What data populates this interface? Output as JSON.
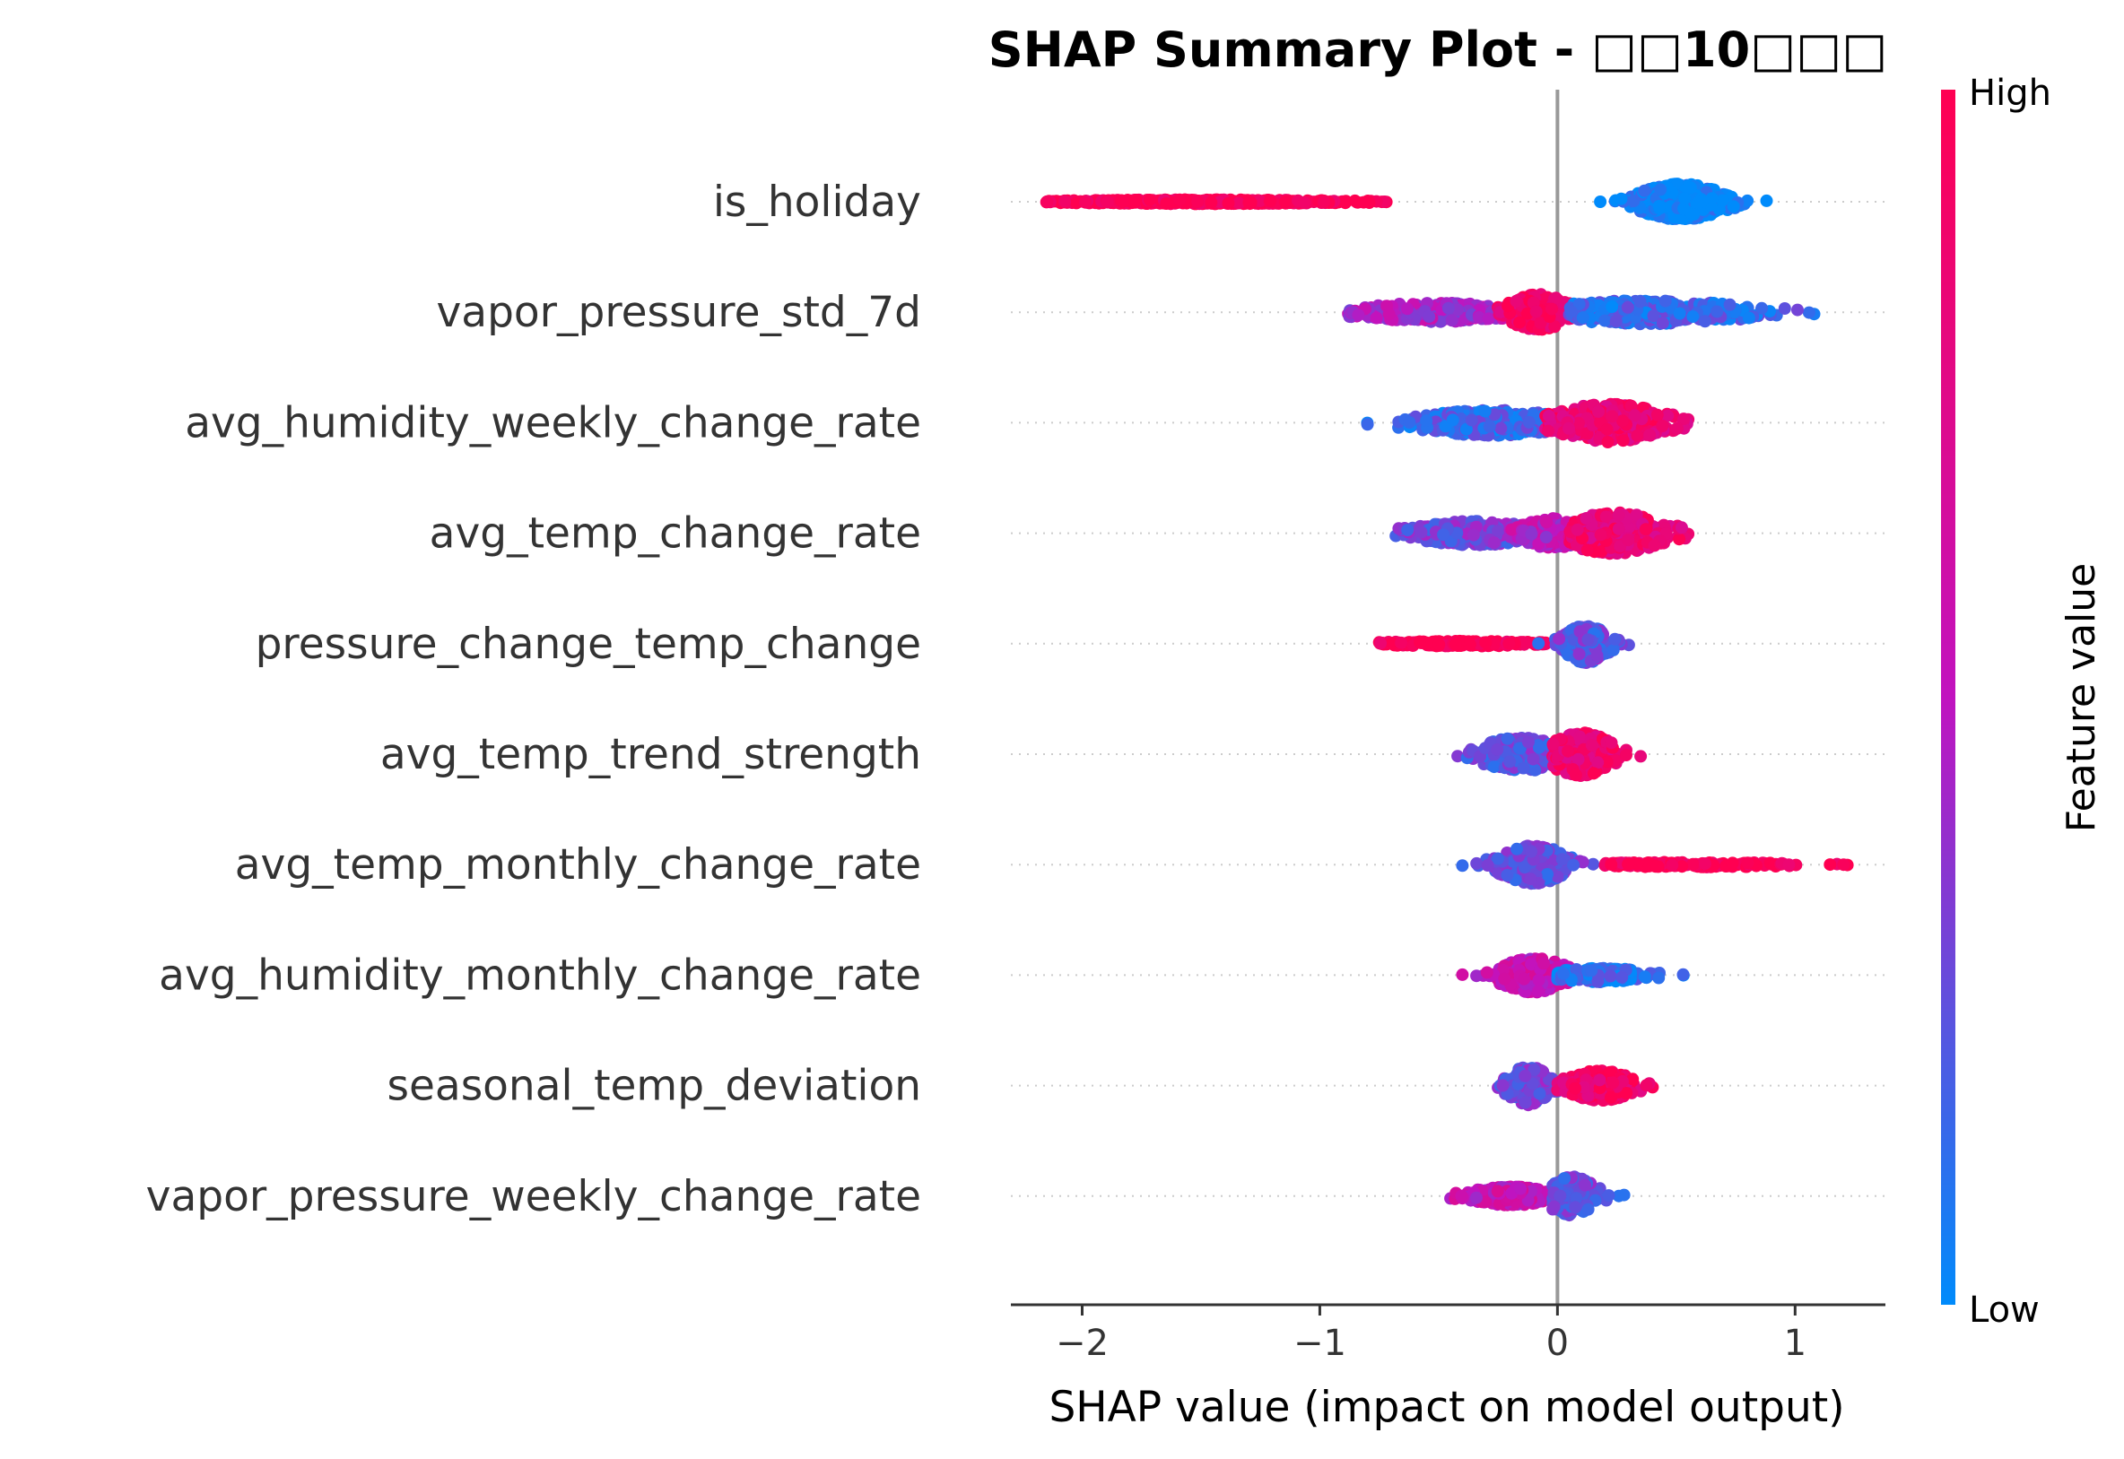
{
  "chart_data": {
    "type": "scatter",
    "subtype": "shap-beeswarm",
    "title": "SHAP Summary Plot - □□10□□□",
    "xlabel": "SHAP value (impact on model output)",
    "ylabel": "",
    "xlim": [
      -2.3,
      1.38
    ],
    "xticks": [
      -2,
      -1,
      0,
      1
    ],
    "xtick_labels": [
      "−2",
      "−1",
      "0",
      "1"
    ],
    "zero_line": 0,
    "colorbar": {
      "label": "Feature value",
      "high_label": "High",
      "low_label": "Low",
      "high_color": "#ff0051",
      "mid_color": "#c113bf",
      "low_color": "#008bfb"
    },
    "colors": {
      "axis": "#333333",
      "zero_line": "#999999",
      "row_guide": "#cccccc"
    },
    "features": [
      {
        "name": "is_holiday",
        "clusters": [
          {
            "min": -2.15,
            "max": -0.72,
            "center": -1.5,
            "spread": 0.35,
            "width": 0.05,
            "fvalue": 1.0,
            "n": 430
          },
          {
            "min": 0.18,
            "max": 0.88,
            "center": 0.52,
            "spread": 0.1,
            "width": 0.42,
            "fvalue": 0.0,
            "n": 520
          }
        ]
      },
      {
        "name": "vapor_pressure_std_7d",
        "clusters": [
          {
            "min": -0.88,
            "max": -0.05,
            "center": -0.5,
            "spread": 0.2,
            "width": 0.22,
            "fvalue": 0.45,
            "n": 260
          },
          {
            "min": -0.25,
            "max": 0.08,
            "center": -0.08,
            "spread": 0.07,
            "width": 0.42,
            "fvalue": 0.9,
            "n": 240
          },
          {
            "min": 0.05,
            "max": 1.08,
            "center": 0.38,
            "spread": 0.25,
            "width": 0.28,
            "fvalue": 0.15,
            "n": 300
          }
        ]
      },
      {
        "name": "avg_humidity_weekly_change_rate",
        "clusters": [
          {
            "min": -0.8,
            "max": -0.05,
            "center": -0.28,
            "spread": 0.18,
            "width": 0.3,
            "fvalue": 0.15,
            "n": 300
          },
          {
            "min": -0.05,
            "max": 0.55,
            "center": 0.22,
            "spread": 0.13,
            "width": 0.45,
            "fvalue": 0.85,
            "n": 320
          }
        ]
      },
      {
        "name": "avg_temp_change_rate",
        "clusters": [
          {
            "min": -0.68,
            "max": -0.1,
            "center": -0.35,
            "spread": 0.15,
            "width": 0.28,
            "fvalue": 0.3,
            "n": 240
          },
          {
            "min": -0.2,
            "max": 0.1,
            "center": -0.02,
            "spread": 0.08,
            "width": 0.35,
            "fvalue": 0.5,
            "n": 160
          },
          {
            "min": 0.05,
            "max": 0.55,
            "center": 0.24,
            "spread": 0.12,
            "width": 0.48,
            "fvalue": 0.85,
            "n": 300
          }
        ]
      },
      {
        "name": "pressure_change_temp_change",
        "clusters": [
          {
            "min": -0.75,
            "max": -0.05,
            "center": -0.42,
            "spread": 0.2,
            "width": 0.06,
            "fvalue": 1.0,
            "n": 170
          },
          {
            "min": -0.08,
            "max": 0.3,
            "center": 0.12,
            "spread": 0.05,
            "width": 0.45,
            "fvalue": 0.25,
            "n": 240
          }
        ]
      },
      {
        "name": "avg_temp_trend_strength",
        "clusters": [
          {
            "min": -0.42,
            "max": 0.0,
            "center": -0.15,
            "spread": 0.1,
            "width": 0.4,
            "fvalue": 0.25,
            "n": 220
          },
          {
            "min": -0.02,
            "max": 0.35,
            "center": 0.1,
            "spread": 0.08,
            "width": 0.5,
            "fvalue": 0.85,
            "n": 240
          }
        ]
      },
      {
        "name": "avg_temp_monthly_change_rate",
        "clusters": [
          {
            "min": -0.4,
            "max": 0.15,
            "center": -0.1,
            "spread": 0.08,
            "width": 0.45,
            "fvalue": 0.25,
            "n": 260
          },
          {
            "min": 0.2,
            "max": 1.22,
            "center": 0.55,
            "spread": 0.25,
            "width": 0.06,
            "fvalue": 1.0,
            "n": 190
          }
        ]
      },
      {
        "name": "avg_humidity_monthly_change_rate",
        "clusters": [
          {
            "min": -0.4,
            "max": 0.05,
            "center": -0.1,
            "spread": 0.08,
            "width": 0.4,
            "fvalue": 0.55,
            "n": 240
          },
          {
            "min": 0.0,
            "max": 0.53,
            "center": 0.18,
            "spread": 0.12,
            "width": 0.16,
            "fvalue": 0.1,
            "n": 180
          }
        ]
      },
      {
        "name": "seasonal_temp_deviation",
        "clusters": [
          {
            "min": -0.25,
            "max": 0.02,
            "center": -0.12,
            "spread": 0.05,
            "width": 0.45,
            "fvalue": 0.3,
            "n": 180
          },
          {
            "min": 0.0,
            "max": 0.4,
            "center": 0.18,
            "spread": 0.08,
            "width": 0.35,
            "fvalue": 0.9,
            "n": 220
          }
        ]
      },
      {
        "name": "vapor_pressure_weekly_change_rate",
        "clusters": [
          {
            "min": -0.45,
            "max": 0.0,
            "center": -0.2,
            "spread": 0.1,
            "width": 0.22,
            "fvalue": 0.55,
            "n": 200
          },
          {
            "min": -0.02,
            "max": 0.28,
            "center": 0.06,
            "spread": 0.06,
            "width": 0.45,
            "fvalue": 0.25,
            "n": 200
          }
        ]
      }
    ]
  }
}
